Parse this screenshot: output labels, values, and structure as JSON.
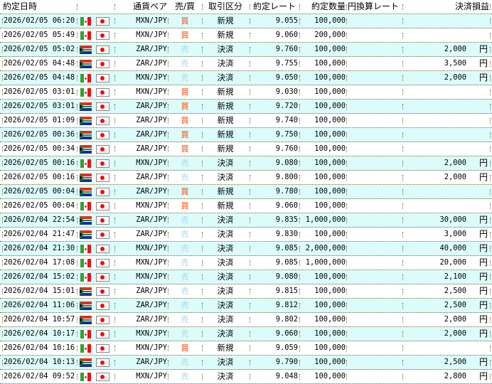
{
  "header": {
    "date": "約定日時",
    "pair": "通貨ペア",
    "side": "売/買",
    "type": "取引区分",
    "rate": "約定レート",
    "qty": "約定数量",
    "yen_rate": "円換算レート",
    "pnl": "決済損益"
  },
  "colors": {
    "row_alt": "#dcfcfc",
    "buy": "#ff4000",
    "sell": "#a8d4e4",
    "separator": "#6b6b2f"
  },
  "rows": [
    {
      "date": "2026/02/05 06:20",
      "flag": "mexico-flag-icon",
      "pair": "MXN/JPY",
      "side": "買",
      "type": "新規",
      "rate": "9.055",
      "qty": "100,000",
      "yen_rate": "",
      "pnl": "",
      "unit": ""
    },
    {
      "date": "2026/02/05 05:49",
      "flag": "mexico-flag-icon",
      "pair": "MXN/JPY",
      "side": "買",
      "type": "新規",
      "rate": "9.060",
      "qty": "200,000",
      "yen_rate": "",
      "pnl": "",
      "unit": ""
    },
    {
      "date": "2026/02/05 05:02",
      "flag": "south-africa-flag-icon",
      "pair": "ZAR/JPY",
      "side": "売",
      "type": "決済",
      "rate": "9.760",
      "qty": "100,000",
      "yen_rate": "",
      "pnl": "2,000",
      "unit": "円"
    },
    {
      "date": "2026/02/05 04:48",
      "flag": "south-africa-flag-icon",
      "pair": "ZAR/JPY",
      "side": "売",
      "type": "決済",
      "rate": "9.755",
      "qty": "100,000",
      "yen_rate": "",
      "pnl": "3,500",
      "unit": "円"
    },
    {
      "date": "2026/02/05 04:48",
      "flag": "mexico-flag-icon",
      "pair": "MXN/JPY",
      "side": "売",
      "type": "決済",
      "rate": "9.050",
      "qty": "100,000",
      "yen_rate": "",
      "pnl": "2,000",
      "unit": "円"
    },
    {
      "date": "2026/02/05 03:01",
      "flag": "mexico-flag-icon",
      "pair": "MXN/JPY",
      "side": "買",
      "type": "新規",
      "rate": "9.030",
      "qty": "100,000",
      "yen_rate": "",
      "pnl": "",
      "unit": ""
    },
    {
      "date": "2026/02/05 03:01",
      "flag": "south-africa-flag-icon",
      "pair": "ZAR/JPY",
      "side": "買",
      "type": "新規",
      "rate": "9.720",
      "qty": "100,000",
      "yen_rate": "",
      "pnl": "",
      "unit": ""
    },
    {
      "date": "2026/02/05 01:09",
      "flag": "south-africa-flag-icon",
      "pair": "ZAR/JPY",
      "side": "買",
      "type": "新規",
      "rate": "9.740",
      "qty": "100,000",
      "yen_rate": "",
      "pnl": "",
      "unit": ""
    },
    {
      "date": "2026/02/05 00:36",
      "flag": "south-africa-flag-icon",
      "pair": "ZAR/JPY",
      "side": "買",
      "type": "新規",
      "rate": "9.750",
      "qty": "100,000",
      "yen_rate": "",
      "pnl": "",
      "unit": ""
    },
    {
      "date": "2026/02/05 00:34",
      "flag": "south-africa-flag-icon",
      "pair": "ZAR/JPY",
      "side": "買",
      "type": "新規",
      "rate": "9.760",
      "qty": "100,000",
      "yen_rate": "",
      "pnl": "",
      "unit": ""
    },
    {
      "date": "2026/02/05 00:16",
      "flag": "mexico-flag-icon",
      "pair": "MXN/JPY",
      "side": "売",
      "type": "決済",
      "rate": "9.080",
      "qty": "100,000",
      "yen_rate": "",
      "pnl": "2,000",
      "unit": "円"
    },
    {
      "date": "2026/02/05 00:16",
      "flag": "south-africa-flag-icon",
      "pair": "ZAR/JPY",
      "side": "売",
      "type": "決済",
      "rate": "9.800",
      "qty": "100,000",
      "yen_rate": "",
      "pnl": "2,000",
      "unit": "円"
    },
    {
      "date": "2026/02/05 00:04",
      "flag": "south-africa-flag-icon",
      "pair": "ZAR/JPY",
      "side": "買",
      "type": "新規",
      "rate": "9.780",
      "qty": "100,000",
      "yen_rate": "",
      "pnl": "",
      "unit": ""
    },
    {
      "date": "2026/02/05 00:04",
      "flag": "mexico-flag-icon",
      "pair": "MXN/JPY",
      "side": "買",
      "type": "新規",
      "rate": "9.060",
      "qty": "100,000",
      "yen_rate": "",
      "pnl": "",
      "unit": ""
    },
    {
      "date": "2026/02/04 22:54",
      "flag": "south-africa-flag-icon",
      "pair": "ZAR/JPY",
      "side": "売",
      "type": "決済",
      "rate": "9.835",
      "qty": "1,000,000",
      "yen_rate": "",
      "pnl": "30,000",
      "unit": "円"
    },
    {
      "date": "2026/02/04 21:47",
      "flag": "south-africa-flag-icon",
      "pair": "ZAR/JPY",
      "side": "売",
      "type": "決済",
      "rate": "9.830",
      "qty": "100,000",
      "yen_rate": "",
      "pnl": "3,000",
      "unit": "円"
    },
    {
      "date": "2026/02/04 21:30",
      "flag": "mexico-flag-icon",
      "pair": "MXN/JPY",
      "side": "売",
      "type": "決済",
      "rate": "9.085",
      "qty": "2,000,000",
      "yen_rate": "",
      "pnl": "40,000",
      "unit": "円"
    },
    {
      "date": "2026/02/04 17:08",
      "flag": "mexico-flag-icon",
      "pair": "MXN/JPY",
      "side": "売",
      "type": "決済",
      "rate": "9.085",
      "qty": "1,000,000",
      "yen_rate": "",
      "pnl": "20,000",
      "unit": "円"
    },
    {
      "date": "2026/02/04 15:02",
      "flag": "mexico-flag-icon",
      "pair": "MXN/JPY",
      "side": "売",
      "type": "決済",
      "rate": "9.080",
      "qty": "100,000",
      "yen_rate": "",
      "pnl": "2,100",
      "unit": "円"
    },
    {
      "date": "2026/02/04 15:01",
      "flag": "south-africa-flag-icon",
      "pair": "ZAR/JPY",
      "side": "売",
      "type": "決済",
      "rate": "9.815",
      "qty": "100,000",
      "yen_rate": "",
      "pnl": "2,500",
      "unit": "円"
    },
    {
      "date": "2026/02/04 11:06",
      "flag": "south-africa-flag-icon",
      "pair": "ZAR/JPY",
      "side": "売",
      "type": "決済",
      "rate": "9.812",
      "qty": "100,000",
      "yen_rate": "",
      "pnl": "2,500",
      "unit": "円"
    },
    {
      "date": "2026/02/04 10:57",
      "flag": "south-africa-flag-icon",
      "pair": "ZAR/JPY",
      "side": "売",
      "type": "決済",
      "rate": "9.802",
      "qty": "100,000",
      "yen_rate": "",
      "pnl": "2,000",
      "unit": "円"
    },
    {
      "date": "2026/02/04 10:17",
      "flag": "mexico-flag-icon",
      "pair": "MXN/JPY",
      "side": "売",
      "type": "決済",
      "rate": "9.060",
      "qty": "100,000",
      "yen_rate": "",
      "pnl": "2,000",
      "unit": "円"
    },
    {
      "date": "2026/02/04 10:16",
      "flag": "mexico-flag-icon",
      "pair": "MXN/JPY",
      "side": "買",
      "type": "新規",
      "rate": "9.059",
      "qty": "100,000",
      "yen_rate": "",
      "pnl": "",
      "unit": ""
    },
    {
      "date": "2026/02/04 10:13",
      "flag": "south-africa-flag-icon",
      "pair": "ZAR/JPY",
      "side": "売",
      "type": "決済",
      "rate": "9.790",
      "qty": "100,000",
      "yen_rate": "",
      "pnl": "2,500",
      "unit": "円"
    },
    {
      "date": "2026/02/04 09:52",
      "flag": "mexico-flag-icon",
      "pair": "MXN/JPY",
      "side": "売",
      "type": "決済",
      "rate": "9.048",
      "qty": "100,000",
      "yen_rate": "",
      "pnl": "2,800",
      "unit": "円"
    }
  ]
}
